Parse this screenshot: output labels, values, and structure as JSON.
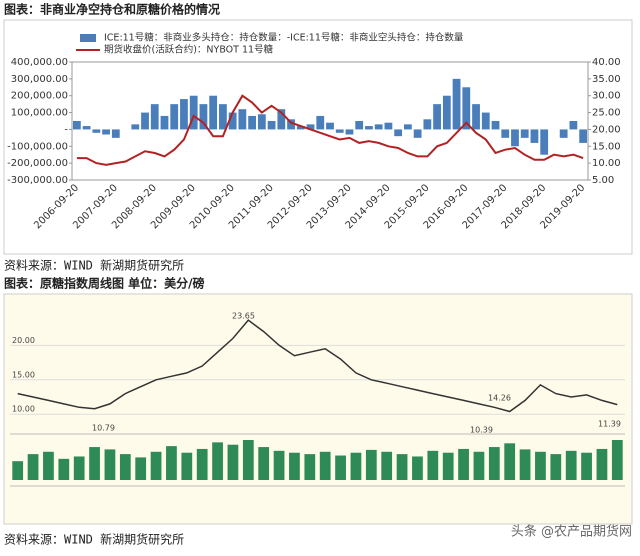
{
  "captions": [
    "图表：非商业净空持仓和原糖价格的情况",
    "图表：原糖指数周线图 单位：美分/磅"
  ],
  "sources": [
    "资料来源：WIND 新湖期货研究所",
    "资料来源：WIND 新湖期货研究所"
  ],
  "watermark": "头条 @农产品期货网",
  "chart_data": [
    {
      "type": "bar-line",
      "categories": [
        "2006-09-20",
        null,
        null,
        null,
        "2007-09-20",
        null,
        null,
        null,
        "2008-09-20",
        null,
        null,
        null,
        "2009-09-20",
        null,
        null,
        null,
        "2010-09-20",
        null,
        null,
        null,
        "2011-09-20",
        null,
        null,
        null,
        "2012-09-20",
        null,
        null,
        null,
        "2013-09-20",
        null,
        null,
        null,
        "2014-09-20",
        null,
        null,
        null,
        "2015-09-20",
        null,
        null,
        null,
        "2016-09-20",
        null,
        null,
        null,
        "2017-09-20",
        null,
        null,
        null,
        "2018-09-20",
        null,
        null,
        null,
        "2019-09-20"
      ],
      "series": [
        {
          "name": "ICE:11号糖：非商业多头持仓：持仓数量：-ICE:11号糖：非商业空头持仓：持仓数量",
          "color": "#4a7ebb",
          "values": [
            50000,
            20000,
            -20000,
            -30000,
            -50000,
            0,
            30000,
            100000,
            150000,
            80000,
            150000,
            180000,
            200000,
            150000,
            200000,
            150000,
            100000,
            120000,
            80000,
            90000,
            50000,
            120000,
            60000,
            20000,
            30000,
            80000,
            40000,
            -20000,
            -30000,
            50000,
            20000,
            30000,
            40000,
            -40000,
            30000,
            -50000,
            60000,
            150000,
            200000,
            300000,
            250000,
            150000,
            100000,
            50000,
            -50000,
            -100000,
            -50000,
            -80000,
            -150000,
            0,
            -50000,
            50000,
            -80000
          ]
        },
        {
          "name": "期货收盘价(活跃合约)：NYBOT 11号糖",
          "color": "#b22222",
          "axis": "y2",
          "values": [
            11.5,
            11.5,
            10,
            9.5,
            10,
            10.5,
            12,
            13.5,
            13,
            12,
            14,
            17,
            24,
            22,
            18,
            18,
            25,
            30,
            28,
            25,
            27,
            25,
            22,
            21,
            20,
            19,
            18,
            17,
            17.5,
            16,
            16.5,
            16,
            15,
            14.5,
            13,
            12,
            12,
            15,
            16,
            19,
            22,
            19,
            17,
            13,
            14,
            14.5,
            12.5,
            11,
            11,
            12.5,
            12,
            12.5,
            11.5
          ]
        }
      ],
      "ylim": [
        -300000,
        400000
      ],
      "yticks": [
        {
          "value": -300000,
          "label": "-300,000.00"
        },
        {
          "value": -200000,
          "label": "-200,000.00"
        },
        {
          "value": -100000,
          "label": "-100,000.00"
        },
        {
          "value": 0,
          "label": "-"
        },
        {
          "value": 100000,
          "label": "100,000.00"
        },
        {
          "value": 200000,
          "label": "200,000.00"
        },
        {
          "value": 300000,
          "label": "300,000.00"
        },
        {
          "value": 400000,
          "label": "400,000.00"
        }
      ],
      "y2lim": [
        5,
        40
      ],
      "y2ticks": [
        {
          "value": 5,
          "label": "5.00"
        },
        {
          "value": 10,
          "label": "10.00"
        },
        {
          "value": 15,
          "label": "15.00"
        },
        {
          "value": 20,
          "label": "20.00"
        },
        {
          "value": 25,
          "label": "25.00"
        },
        {
          "value": 30,
          "label": "30.00"
        },
        {
          "value": 35,
          "label": "35.00"
        },
        {
          "value": 40,
          "label": "40.00"
        }
      ]
    },
    {
      "type": "line",
      "series": [
        {
          "name": "原糖指数",
          "color": "#333333",
          "values": [
            13,
            12.5,
            12,
            11.5,
            11,
            10.8,
            11.5,
            13,
            14,
            15,
            15.5,
            16,
            17,
            19,
            21,
            23.65,
            22,
            20,
            18.5,
            19,
            19.5,
            18,
            16,
            15,
            14.5,
            14,
            13.5,
            13,
            12.5,
            12,
            11.5,
            11,
            10.39,
            12,
            14.26,
            13,
            12.5,
            12.8,
            12,
            11.39
          ]
        }
      ],
      "volume": {
        "color": "#2e8b57",
        "values": [
          40,
          55,
          60,
          45,
          50,
          70,
          65,
          55,
          48,
          60,
          72,
          58,
          66,
          80,
          75,
          85,
          70,
          62,
          58,
          55,
          60,
          52,
          58,
          64,
          60,
          55,
          50,
          62,
          58,
          66,
          60,
          70,
          78,
          65,
          60,
          55,
          62,
          58,
          66,
          85
        ]
      },
      "ylim": [
        8,
        26
      ],
      "yticks": [
        {
          "value": 10,
          "label": "10.00"
        },
        {
          "value": 15,
          "label": "15.00"
        },
        {
          "value": 20,
          "label": "20.00"
        }
      ],
      "annotations": [
        "23.65",
        "10.79",
        "10.39",
        "14.26",
        "11.39"
      ]
    }
  ]
}
